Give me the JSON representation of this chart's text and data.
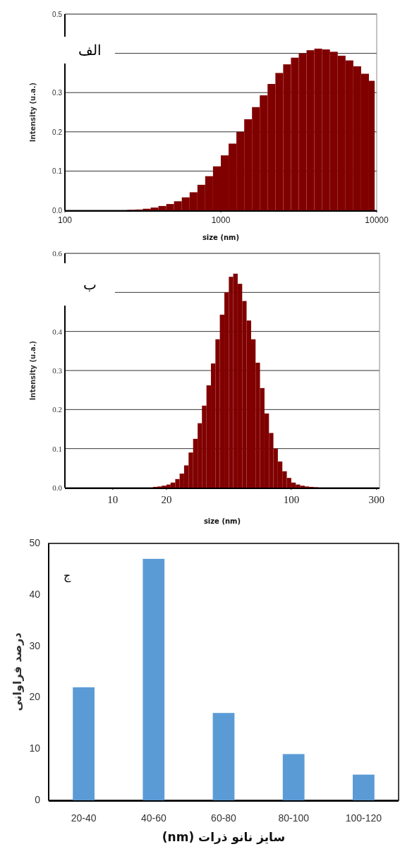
{
  "chart_data": [
    {
      "type": "histogram",
      "xlabel": "size (nm)",
      "ylabel": "Intensity (u.a.)",
      "annotations": [
        "الف"
      ],
      "log": "x",
      "grid": "y",
      "color": "#800000",
      "bins": [
        251,
        282,
        316,
        355,
        398,
        447,
        501,
        562,
        631,
        708,
        794,
        891,
        1000,
        1122,
        1259,
        1413,
        1585,
        1778,
        1995,
        2239,
        2512,
        2818,
        3162,
        3548,
        3981,
        4467,
        5012,
        5623,
        6310,
        7079,
        7943,
        8913,
        9700
      ],
      "values": [
        0.001,
        0.002,
        0.004,
        0.007,
        0.011,
        0.016,
        0.023,
        0.033,
        0.046,
        0.065,
        0.087,
        0.112,
        0.14,
        0.17,
        0.2,
        0.232,
        0.263,
        0.293,
        0.322,
        0.35,
        0.372,
        0.389,
        0.4,
        0.408,
        0.412,
        0.41,
        0.404,
        0.394,
        0.382,
        0.367,
        0.348,
        0.33
      ],
      "xlim": [
        100,
        10000
      ],
      "xticks": [
        100,
        1000,
        10000
      ],
      "ylim": [
        0,
        0.5
      ],
      "yticks": [
        {
          "value": 0,
          "label": "0.0"
        },
        {
          "value": 0.1,
          "label": "0.1"
        },
        {
          "value": 0.2,
          "label": "0.2"
        },
        {
          "value": 0.3,
          "label": "0.3"
        },
        {
          "value": 0.4,
          "label": null
        },
        {
          "value": 0.5,
          "label": "0.5"
        }
      ]
    },
    {
      "type": "histogram",
      "xlabel": "size (nm)",
      "ylabel": "Intensity (u.a.)",
      "annotations": [
        "ب"
      ],
      "log": "x",
      "grid": "y",
      "color": "#800000",
      "bins": [
        16.8,
        17.8,
        18.8,
        20.0,
        21.1,
        22.4,
        23.7,
        25.1,
        26.6,
        28.2,
        29.9,
        31.6,
        33.5,
        35.5,
        37.6,
        39.8,
        42.2,
        44.7,
        47.3,
        50.1,
        53.1,
        56.2,
        59.6,
        63.1,
        66.8,
        70.8,
        75.0,
        79.4,
        84.1,
        89.1,
        94.4,
        100,
        105.9,
        112.2,
        118.9,
        125.9,
        133.4,
        141.3
      ],
      "values": [
        0.002,
        0.003,
        0.005,
        0.008,
        0.013,
        0.022,
        0.036,
        0.057,
        0.09,
        0.125,
        0.165,
        0.21,
        0.262,
        0.318,
        0.38,
        0.443,
        0.5,
        0.54,
        0.548,
        0.522,
        0.478,
        0.428,
        0.38,
        0.32,
        0.255,
        0.19,
        0.14,
        0.1,
        0.067,
        0.042,
        0.025,
        0.013,
        0.008,
        0.005,
        0.003,
        0.002,
        0.001
      ],
      "xlim": [
        5.4,
        312
      ],
      "xticks": [
        10,
        20,
        100,
        300
      ],
      "ylim": [
        0,
        0.6
      ],
      "yticks": [
        {
          "value": 0,
          "label": "0.0"
        },
        {
          "value": 0.1,
          "label": "0.1"
        },
        {
          "value": 0.2,
          "label": "0.2"
        },
        {
          "value": 0.3,
          "label": "0.3"
        },
        {
          "value": 0.4,
          "label": "0.4"
        },
        {
          "value": 0.5,
          "label": null
        },
        {
          "value": 0.6,
          "label": "0.6"
        }
      ]
    },
    {
      "type": "bar",
      "xlabel": "سایز نانو ذرات (nm)",
      "ylabel": "درصد فراوانی",
      "annotations": [
        "ج"
      ],
      "color": "#5b9bd5",
      "categories": [
        "20-40",
        "40-60",
        "60-80",
        "80-100",
        "100-120"
      ],
      "values": [
        22,
        47,
        17,
        9,
        5
      ],
      "ylim": [
        0,
        50
      ],
      "yticks": [
        0,
        10,
        20,
        30,
        40,
        50
      ]
    }
  ]
}
